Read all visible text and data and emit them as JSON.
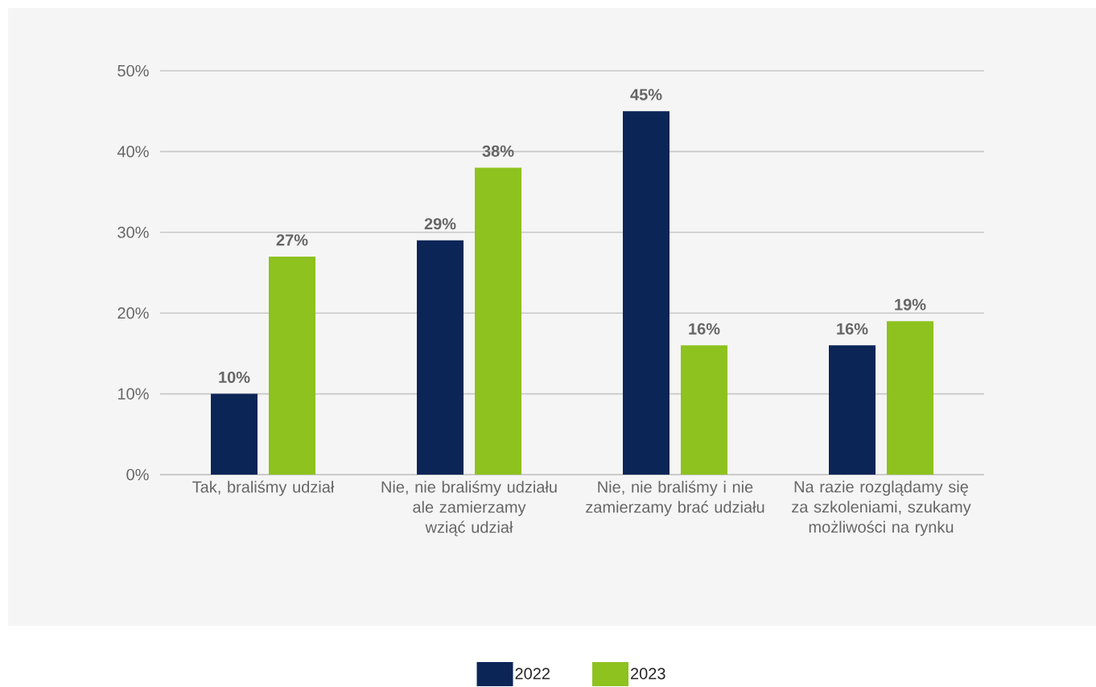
{
  "chart_data": {
    "type": "bar",
    "categories": [
      "Tak, braliśmy udział",
      "Nie, nie braliśmy udziału ale zamierzamy wziąć udział",
      "Nie, nie braliśmy i nie zamierzamy brać udziału",
      "Na razie rozglądamy się za szkoleniami, szukamy możliwości na rynku"
    ],
    "series": [
      {
        "name": "2022",
        "color": "#0b2557",
        "values": [
          10,
          29,
          45,
          16
        ],
        "value_labels": [
          "10%",
          "29%",
          "45%",
          "16%"
        ]
      },
      {
        "name": "2023",
        "color": "#8dc21f",
        "values": [
          27,
          38,
          16,
          19
        ],
        "value_labels": [
          "27%",
          "38%",
          "16%",
          "19%"
        ]
      }
    ],
    "ylim": [
      0,
      50
    ],
    "yticks": [
      {
        "value": 0,
        "label": "0%"
      },
      {
        "value": 10,
        "label": "10%"
      },
      {
        "value": 20,
        "label": "20%"
      },
      {
        "value": 30,
        "label": "30%"
      },
      {
        "value": 40,
        "label": "40%"
      },
      {
        "value": 50,
        "label": "50%"
      }
    ],
    "grid": "y",
    "legend": "bottom"
  }
}
